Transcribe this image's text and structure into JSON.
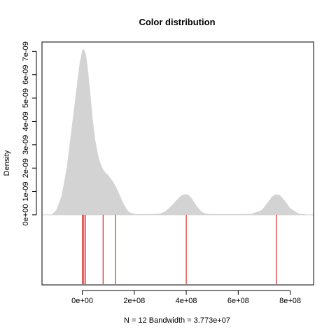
{
  "chart_data": {
    "type": "area",
    "title": "Color distribution",
    "xlabel": "N = 12   Bandwidth = 3.773e+07",
    "ylabel": "Density",
    "xlim": [
      -155000000,
      890000000
    ],
    "ylim": [
      -3e-09,
      7.4e-09
    ],
    "x_ticks": [
      0,
      200000000,
      400000000,
      600000000,
      800000000
    ],
    "x_tick_labels": [
      "0e+00",
      "2e+08",
      "4e+08",
      "6e+08",
      "8e+08"
    ],
    "y_ticks": [
      0,
      1e-09,
      2e-09,
      3e-09,
      4e-09,
      5e-09,
      6e-09,
      7e-09
    ],
    "y_tick_labels": [
      "0e+00",
      "1e-09",
      "2e-09",
      "3e-09",
      "4e-09",
      "5e-09",
      "6e-09",
      "7e-09"
    ],
    "fill_color": "#d3d3d3",
    "rug_color": "#cc0000",
    "baseline_color": "#d3d3d3",
    "series": [
      {
        "x": [
          -115000000,
          -100000000,
          -80000000,
          -60000000,
          -40000000,
          -20000000,
          -10000000,
          0,
          5000000,
          10000000,
          15000000,
          20000000,
          30000000,
          40000000,
          50000000,
          60000000,
          70000000,
          80000000,
          90000000,
          100000000,
          110000000,
          120000000,
          130000000,
          140000000,
          150000000,
          160000000,
          170000000,
          180000000,
          200000000,
          220000000,
          250000000,
          300000000,
          320000000,
          340000000,
          360000000,
          380000000,
          390000000,
          400000000,
          410000000,
          420000000,
          440000000,
          460000000,
          480000000,
          550000000,
          650000000,
          690000000,
          710000000,
          730000000,
          745000000,
          760000000,
          780000000,
          800000000,
          830000000,
          860000000
        ],
        "y": [
          5e-11,
          2e-10,
          8e-10,
          2e-09,
          3.8e-09,
          5.6e-09,
          6.5e-09,
          7.05e-09,
          7.1e-09,
          7e-09,
          6.8e-09,
          6.4e-09,
          5.3e-09,
          4.1e-09,
          3.2e-09,
          2.6e-09,
          2.2e-09,
          1.95e-09,
          1.8e-09,
          1.7e-09,
          1.55e-09,
          1.4e-09,
          1.2e-09,
          9.5e-10,
          7e-10,
          4.5e-10,
          2.5e-10,
          1.2e-10,
          4e-11,
          3e-11,
          3e-11,
          5e-11,
          1.5e-10,
          3.5e-10,
          6e-10,
          8.2e-10,
          8.7e-10,
          8.8e-10,
          8.4e-10,
          7.2e-10,
          3.8e-10,
          1.2e-10,
          4e-11,
          3e-11,
          4e-11,
          2e-10,
          4.8e-10,
          7.8e-10,
          8.8e-10,
          8.4e-10,
          6e-10,
          2.8e-10,
          6e-11,
          2e-11
        ]
      }
    ],
    "rug": [
      0,
      6000000,
      12000000,
      80000000,
      128000000,
      400000000,
      746000000
    ]
  }
}
